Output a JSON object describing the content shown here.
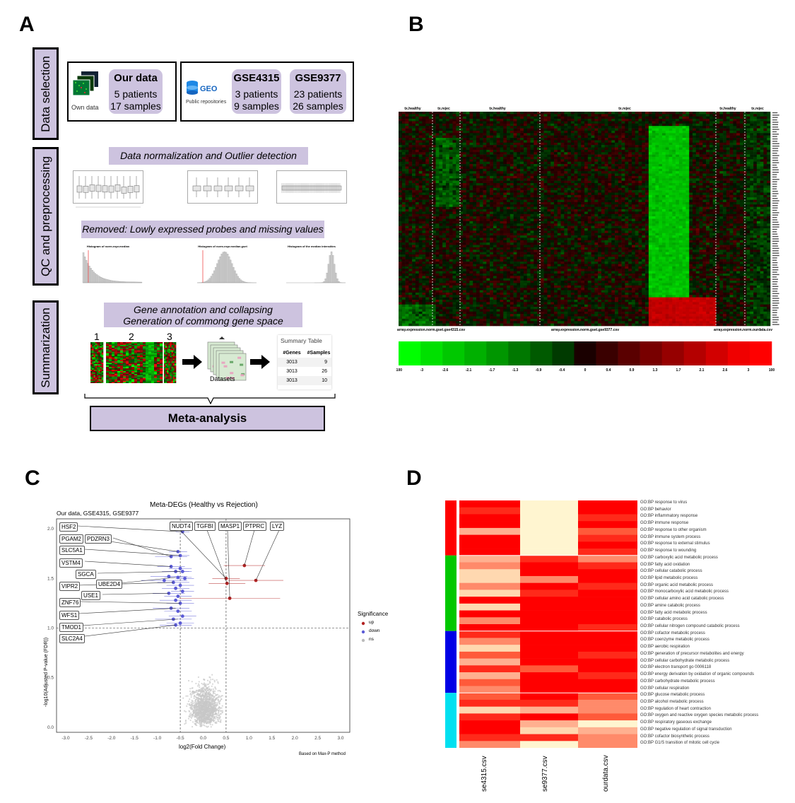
{
  "panels": {
    "a": "A",
    "b": "B",
    "c": "C",
    "d": "D"
  },
  "panelA": {
    "stages": [
      "Data selection",
      "QC and preprocessing",
      "Summarization"
    ],
    "own": {
      "caption": "Own data",
      "title": "Our data",
      "patients": "5 patients",
      "samples": "17 samples"
    },
    "geo": {
      "caption": "Public repositories",
      "logo": "GEO"
    },
    "gse4315": {
      "title": "GSE4315",
      "patients": "3 patients",
      "samples": "9 samples"
    },
    "gse9377": {
      "title": "GSE9377",
      "patients": "23 patients",
      "samples": "26 samples"
    },
    "norm_banner": "Data normalization and Outlier detection",
    "removed_banner": "Removed: Lowly expressed probes and missing values",
    "annot_banner_1": "Gene annotation and collapsing",
    "annot_banner_2": "Generation of commong gene space",
    "hm_nums": [
      "1",
      "2",
      "3"
    ],
    "datasets": "Datasets",
    "summary": {
      "title": "Summary Table",
      "headers": [
        "#Genes",
        "#Samples"
      ],
      "rows": [
        [
          "3013",
          "9"
        ],
        [
          "3013",
          "26"
        ],
        [
          "3013",
          "10"
        ]
      ]
    },
    "meta": "Meta-analysis",
    "hist_titles": [
      "Histogram of norm.expr.median",
      "Histogram of norm.expr.median.gset",
      "Histogram of the median intensities"
    ]
  },
  "panelB": {
    "top_labels": [
      "tx.healthy",
      "tx.rejec",
      "tx.healthy",
      "tx.rejec",
      "tx.healthy",
      "tx.rejec"
    ],
    "bottom_labels": [
      "array.expression.norm.gset.gse4315.csv",
      "array.expression.norm.gset.gse9377.csv",
      "array.expression.norm.ourdata.csv"
    ],
    "scale_ticks": [
      "-100",
      "-3",
      "-2.6",
      "-2.1",
      "-1.7",
      "-1.3",
      "-0.9",
      "-0.4",
      "0",
      "0.4",
      "0.9",
      "1.3",
      "1.7",
      "2.1",
      "2.6",
      "3",
      "100"
    ],
    "scale_colors": [
      "#00ff00",
      "#00e000",
      "#00c800",
      "#00b000",
      "#009600",
      "#007800",
      "#005a00",
      "#003a00",
      "#1a0000",
      "#3a0000",
      "#5a0000",
      "#780000",
      "#960000",
      "#b40000",
      "#d20000",
      "#f00000",
      "#ff0000"
    ]
  },
  "panelC": {
    "title": "Meta-DEGs (Healthy vs Rejection)",
    "subtitle": "Our data, GSE4315, GSE9377",
    "xlabel": "log2(Fold Change)",
    "ylabel": "-log10(Adjusted P-value (FDR))",
    "note": "Based on Max-P method",
    "legend_title": "Significance",
    "legend": [
      {
        "label": "up",
        "color": "#b22222"
      },
      {
        "label": "down",
        "color": "#5b5bd6"
      },
      {
        "label": "ns",
        "color": "#bbbbbb"
      }
    ],
    "left_genes": [
      "HSF2",
      "PGAM2",
      "PDZRN3",
      "SLC5A1",
      "VSTM4",
      "SGCA",
      "UBE2D4",
      "VIPR2",
      "USE1",
      "ZNF76",
      "WFS1",
      "TMOD1",
      "SLC2A4"
    ],
    "top_genes": [
      "NUDT4",
      "TGFBI",
      "MASP1",
      "PTPRC",
      "LYZ"
    ]
  },
  "chart_data": {
    "type": "scatter",
    "title": "Meta-DEGs (Healthy vs Rejection)",
    "subtitle": "Our data, GSE4315, GSE9377",
    "xlabel": "log2(Fold Change)",
    "ylabel": "-log10(Adjusted P-value (FDR))",
    "xlim": [
      -3.2,
      3.2
    ],
    "ylim": [
      -0.05,
      2.1
    ],
    "xticks": [
      -3.0,
      -2.5,
      -2.0,
      -1.5,
      -1.0,
      -0.5,
      0.0,
      0.5,
      1.0,
      1.5,
      2.0,
      2.5,
      3.0
    ],
    "yticks": [
      0.0,
      0.5,
      1.0,
      1.5,
      2.0
    ],
    "thresholds": {
      "x": [
        -0.5,
        0.5
      ],
      "y": 1.0
    },
    "series": [
      {
        "name": "up",
        "color": "#b22222",
        "points": [
          [
            0.9,
            1.63,
            0.45
          ],
          [
            1.15,
            1.48,
            0.6
          ],
          [
            0.5,
            1.5,
            0.3
          ],
          [
            0.52,
            1.45,
            0.4
          ],
          [
            0.58,
            1.3,
            1.1
          ]
        ]
      },
      {
        "name": "down",
        "color": "#5b5bd6",
        "points": [
          [
            -0.45,
            1.97,
            0.15
          ],
          [
            -0.55,
            1.77,
            0.2
          ],
          [
            -0.7,
            1.72,
            0.35
          ],
          [
            -0.5,
            1.73,
            0.2
          ],
          [
            -0.7,
            1.62,
            0.3
          ],
          [
            -0.5,
            1.6,
            0.25
          ],
          [
            -0.6,
            1.57,
            0.3
          ],
          [
            -0.45,
            1.57,
            0.2
          ],
          [
            -0.75,
            1.52,
            0.4
          ],
          [
            -0.55,
            1.51,
            0.3
          ],
          [
            -0.4,
            1.5,
            0.2
          ],
          [
            -0.65,
            1.46,
            0.35
          ],
          [
            -0.85,
            1.48,
            0.5
          ],
          [
            -0.5,
            1.43,
            0.3
          ],
          [
            -0.6,
            1.4,
            0.3
          ],
          [
            -0.45,
            1.37,
            0.25
          ],
          [
            -0.75,
            1.35,
            0.35
          ],
          [
            -0.55,
            1.32,
            0.3
          ],
          [
            -0.6,
            1.28,
            0.35
          ],
          [
            -0.5,
            1.25,
            0.3
          ],
          [
            -0.7,
            1.2,
            0.4
          ],
          [
            -0.55,
            1.17,
            0.3
          ],
          [
            -0.45,
            1.12,
            0.3
          ],
          [
            -0.65,
            1.09,
            0.4
          ],
          [
            -0.5,
            1.05,
            0.3
          ],
          [
            -0.6,
            1.03,
            0.35
          ]
        ]
      }
    ]
  },
  "panelD": {
    "columns": [
      "se4315.csv",
      "se9377.csv",
      "ourdata.csv"
    ],
    "group_colors": [
      "#ff0000",
      "#00c800",
      "#0000e6",
      "#00e0f0"
    ],
    "terms": [
      "GO:BP response to virus",
      "GO:BP behavior",
      "GO:BP inflammatory response",
      "GO:BP immune response",
      "GO:BP response to other organism",
      "GO:BP immune system process",
      "GO:BP response to external stimulus",
      "GO:BP response to wounding",
      "GO:BP carboxylic acid metabolic process",
      "GO:BP fatty acid oxidation",
      "GO:BP cellular catabolic process",
      "GO:BP lipid metabolic process",
      "GO:BP organic acid metabolic process",
      "GO:BP monocarboxylic acid metabolic process",
      "GO:BP cellular amino acid catabolic process",
      "GO:BP amine catabolic process",
      "GO:BP fatty acid metabolic process",
      "GO:BP catabolic process",
      "GO:BP cellular nitrogen compound catabolic process",
      "GO:BP cofactor metabolic process",
      "GO:BP coenzyme metabolic process",
      "GO:BP aerobic respiration",
      "GO:BP generation of precursor metabolites and energy",
      "GO:BP cellular carbohydrate metabolic process",
      "GO:BP electron transport go 0006118",
      "GO:BP energy derivation by oxidation of organic compounds",
      "GO:BP carbohydrate metabolic process",
      "GO:BP cellular respiration",
      "GO:BP glucose metabolic process",
      "GO:BP alcohol metabolic process",
      "GO:BP regulation of heart contraction",
      "GO:BP oxygen and reactive oxygen species metabolic process",
      "GO:BP respiratory gaseous exchange",
      "GO:BP negative regulation of signal transduction",
      "GO:BP cofactor biosynthetic process",
      "GO:BP G1/S transition of mitotic cell cycle"
    ]
  }
}
